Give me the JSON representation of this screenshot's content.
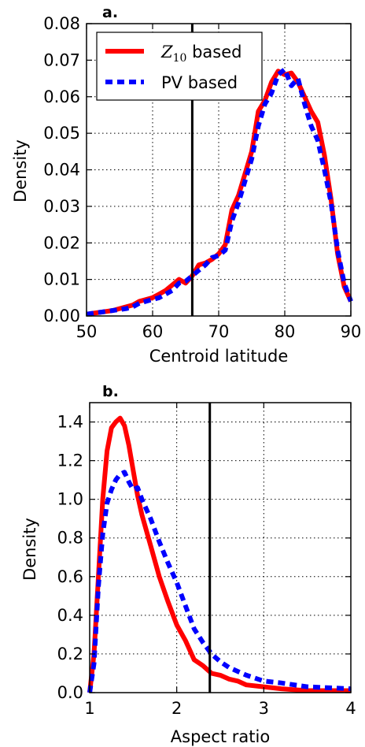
{
  "chart_data": [
    {
      "type": "line",
      "panel_label": "a.",
      "xlabel": "Centroid latitude",
      "ylabel": "Density",
      "xlim": [
        50,
        90
      ],
      "ylim": [
        0,
        0.08
      ],
      "xticks": [
        "50",
        "60",
        "70",
        "80",
        "90"
      ],
      "yticks": [
        "0.00",
        "0.01",
        "0.02",
        "0.03",
        "0.04",
        "0.05",
        "0.06",
        "0.07",
        "0.08"
      ],
      "grid": true,
      "legend_position": "top-left",
      "vline_x": 66,
      "series": [
        {
          "name": "Z10 based",
          "legend_main": "Z",
          "legend_sub": "10",
          "legend_rest": " based",
          "color": "#ff0000",
          "style": "solid",
          "x": [
            50,
            52,
            54,
            56,
            57,
            58,
            59,
            60,
            61,
            62,
            63,
            64,
            65,
            66,
            67,
            68,
            69,
            70,
            71,
            72,
            73,
            74,
            75,
            76,
            77,
            78,
            79,
            80,
            81,
            82,
            83,
            84,
            85,
            86,
            87,
            88,
            89,
            90
          ],
          "y": [
            0.0005,
            0.001,
            0.0015,
            0.0025,
            0.003,
            0.004,
            0.0045,
            0.005,
            0.006,
            0.007,
            0.0085,
            0.01,
            0.009,
            0.011,
            0.014,
            0.0145,
            0.0155,
            0.017,
            0.0195,
            0.029,
            0.033,
            0.039,
            0.045,
            0.056,
            0.059,
            0.064,
            0.067,
            0.066,
            0.0665,
            0.064,
            0.06,
            0.056,
            0.053,
            0.044,
            0.032,
            0.017,
            0.008,
            0.004
          ]
        },
        {
          "name": "PV based",
          "color": "#0000ff",
          "style": "dashed",
          "x": [
            50,
            52,
            54,
            56,
            57,
            58,
            59,
            60,
            61,
            62,
            63,
            64,
            65,
            66,
            67,
            68,
            69,
            70,
            71,
            72,
            73,
            74,
            75,
            76,
            77,
            78,
            79,
            80,
            81,
            82,
            83,
            84,
            85,
            86,
            87,
            88,
            89,
            90
          ],
          "y": [
            0.0005,
            0.001,
            0.0015,
            0.002,
            0.0025,
            0.0035,
            0.004,
            0.0045,
            0.005,
            0.006,
            0.007,
            0.009,
            0.0095,
            0.011,
            0.0125,
            0.014,
            0.016,
            0.0165,
            0.018,
            0.026,
            0.031,
            0.037,
            0.043,
            0.052,
            0.058,
            0.061,
            0.066,
            0.0675,
            0.063,
            0.065,
            0.058,
            0.052,
            0.048,
            0.04,
            0.031,
            0.018,
            0.009,
            0.004
          ]
        }
      ]
    },
    {
      "type": "line",
      "panel_label": "b.",
      "xlabel": "Aspect ratio",
      "ylabel": "Density",
      "xlim": [
        1,
        4
      ],
      "ylim": [
        0,
        1.5
      ],
      "xticks": [
        "1",
        "2",
        "3",
        "4"
      ],
      "yticks": [
        "0.0",
        "0.2",
        "0.4",
        "0.6",
        "0.8",
        "1.0",
        "1.2",
        "1.4"
      ],
      "grid": true,
      "vline_x": 2.38,
      "series": [
        {
          "name": "Z10 based",
          "color": "#ff0000",
          "style": "solid",
          "x": [
            1.0,
            1.05,
            1.1,
            1.15,
            1.2,
            1.25,
            1.3,
            1.35,
            1.4,
            1.45,
            1.5,
            1.55,
            1.6,
            1.7,
            1.8,
            1.9,
            2.0,
            2.1,
            2.2,
            2.3,
            2.4,
            2.5,
            2.6,
            2.7,
            2.8,
            3.0,
            3.2,
            3.5,
            4.0
          ],
          "y": [
            0.0,
            0.2,
            0.6,
            1.0,
            1.25,
            1.37,
            1.4,
            1.42,
            1.38,
            1.28,
            1.15,
            1.02,
            0.92,
            0.76,
            0.6,
            0.47,
            0.35,
            0.27,
            0.17,
            0.14,
            0.1,
            0.09,
            0.07,
            0.06,
            0.04,
            0.03,
            0.02,
            0.01,
            0.01
          ]
        },
        {
          "name": "PV based",
          "color": "#0000ff",
          "style": "dashed",
          "x": [
            1.0,
            1.05,
            1.1,
            1.15,
            1.2,
            1.25,
            1.3,
            1.35,
            1.4,
            1.45,
            1.5,
            1.55,
            1.6,
            1.7,
            1.8,
            1.9,
            2.0,
            2.1,
            2.2,
            2.3,
            2.4,
            2.5,
            2.6,
            2.7,
            2.8,
            3.0,
            3.2,
            3.5,
            4.0
          ],
          "y": [
            0.0,
            0.15,
            0.55,
            0.82,
            0.98,
            1.05,
            1.1,
            1.13,
            1.14,
            1.09,
            1.05,
            1.06,
            1.0,
            0.9,
            0.78,
            0.67,
            0.57,
            0.45,
            0.33,
            0.26,
            0.2,
            0.16,
            0.13,
            0.11,
            0.09,
            0.06,
            0.05,
            0.03,
            0.02
          ]
        }
      ]
    }
  ]
}
